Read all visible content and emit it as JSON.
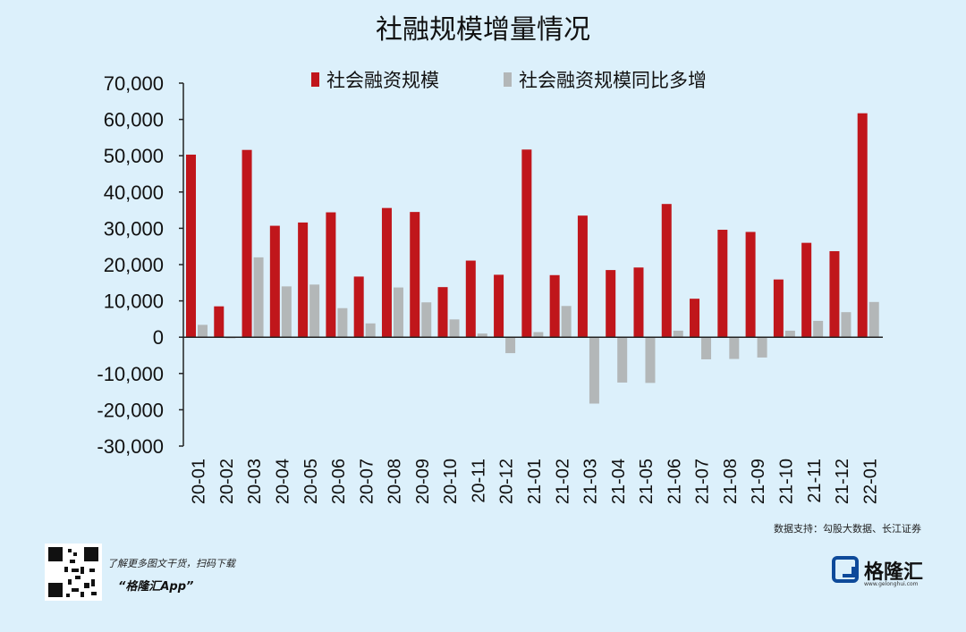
{
  "chart_data": {
    "type": "bar",
    "title": "社融规模增量情况",
    "categories": [
      "20-01",
      "20-02",
      "20-03",
      "20-04",
      "20-05",
      "20-06",
      "20-07",
      "20-08",
      "20-09",
      "20-10",
      "20-11",
      "20-12",
      "21-01",
      "21-02",
      "21-03",
      "21-04",
      "21-05",
      "21-06",
      "21-07",
      "21-08",
      "21-09",
      "21-10",
      "21-11",
      "21-12",
      "22-01"
    ],
    "series": [
      {
        "name": "社会融资规模",
        "color": "#c0161b",
        "values": [
          50300,
          8500,
          51600,
          30700,
          31600,
          34400,
          16700,
          35600,
          34500,
          13800,
          21100,
          17200,
          51700,
          17100,
          33500,
          18500,
          19200,
          36700,
          10600,
          29600,
          29000,
          15900,
          26000,
          23700,
          61700
        ]
      },
      {
        "name": "社会融资规模同比多增",
        "color": "#b3b7b8",
        "values": [
          3400,
          -300,
          22000,
          14000,
          14500,
          8000,
          3800,
          13700,
          9600,
          4900,
          1000,
          -4400,
          1400,
          8600,
          -18300,
          -12500,
          -12600,
          1800,
          -6100,
          -6000,
          -5600,
          1800,
          4500,
          6900,
          9700
        ]
      }
    ],
    "ylim": [
      -30000,
      70000
    ],
    "yticks": [
      70000,
      60000,
      50000,
      40000,
      30000,
      20000,
      10000,
      0,
      -10000,
      -20000,
      -30000
    ],
    "ytick_labels": [
      "70,000",
      "60,000",
      "50,000",
      "40,000",
      "30,000",
      "20,000",
      "10,000",
      "0",
      "-10,000",
      "-20,000",
      "-30,000"
    ],
    "legend_position": "top",
    "grid": false
  },
  "source": "数据支持：勾股大数据、长江证券",
  "footer": {
    "tagline": "了解更多图文干货，扫码下载",
    "app": "“格隆汇App”"
  },
  "brand": {
    "name": "格隆汇",
    "url": "www.gelonghui.com"
  }
}
